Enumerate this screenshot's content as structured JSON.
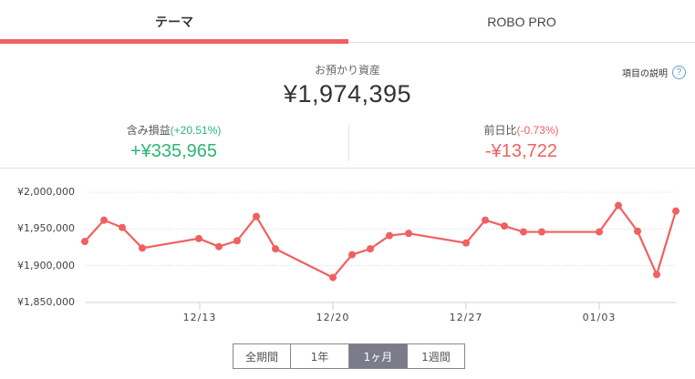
{
  "tabs": [
    {
      "label": "テーマ",
      "active": true
    },
    {
      "label": "ROBO PRO",
      "active": false
    }
  ],
  "summary": {
    "assets_label": "お預かり資産",
    "assets_value": "¥1,974,395",
    "help_label": "項目の説明",
    "help_icon": "?"
  },
  "stats": {
    "unrealized": {
      "label": "含み損益",
      "pct": "(+20.51%)",
      "value": "+¥335,965"
    },
    "daily": {
      "label": "前日比",
      "pct": "(-0.73%)",
      "value": "-¥13,722"
    }
  },
  "periods": [
    {
      "label": "全期間",
      "active": false
    },
    {
      "label": "1年",
      "active": false
    },
    {
      "label": "1ヶ月",
      "active": true
    },
    {
      "label": "1週間",
      "active": false
    }
  ],
  "chart_data": {
    "type": "line",
    "title": "",
    "xlabel": "",
    "ylabel": "",
    "ylim": [
      1850000,
      2000000
    ],
    "yticks": [
      "¥2,000,000",
      "¥1,950,000",
      "¥1,900,000",
      "¥1,850,000"
    ],
    "xticks": [
      "12/13",
      "12/20",
      "12/27",
      "01/03"
    ],
    "grid": true,
    "color": "#f06060",
    "series": [
      {
        "name": "お預かり資産",
        "x": [
          "12/07",
          "12/08",
          "12/09",
          "12/10",
          "12/13",
          "12/14",
          "12/15",
          "12/16",
          "12/17",
          "12/20",
          "12/21",
          "12/22",
          "12/23",
          "12/24",
          "12/27",
          "12/28",
          "12/29",
          "12/30",
          "12/31",
          "01/03",
          "01/04",
          "01/05",
          "01/06",
          "01/07"
        ],
        "values": [
          1933000,
          1962000,
          1952000,
          1924000,
          1937000,
          1926000,
          1934000,
          1967000,
          1923000,
          1884000,
          1915000,
          1923000,
          1941000,
          1944000,
          1931000,
          1962000,
          1954000,
          1946000,
          1946000,
          1946000,
          1982000,
          1947000,
          1888000,
          1974395
        ]
      }
    ]
  }
}
